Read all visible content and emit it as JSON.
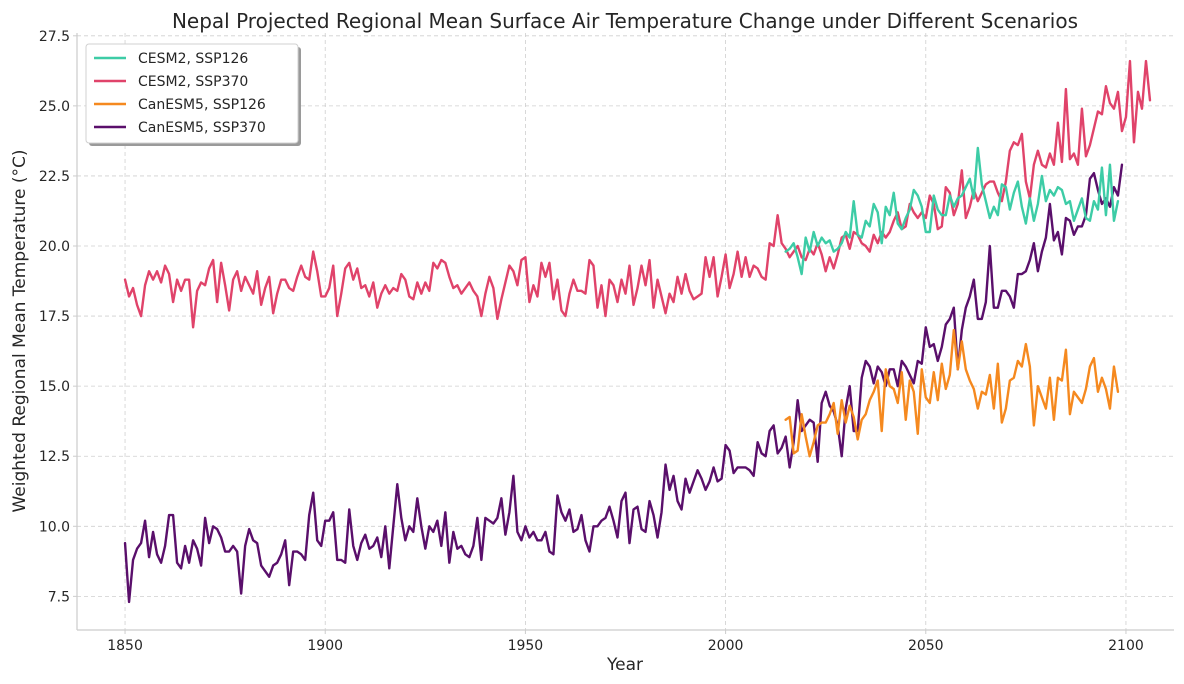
{
  "chart_data": {
    "type": "line",
    "title": "Nepal Projected Regional Mean Surface Air Temperature Change under Different Scenarios",
    "xlabel": "Year",
    "ylabel": "Weighted Regional Mean Temperature (°C)",
    "xlim": [
      1838,
      2112
    ],
    "ylim": [
      6.3,
      27.6
    ],
    "xticks": [
      1850,
      1900,
      1950,
      2000,
      2050,
      2100
    ],
    "yticks": [
      7.5,
      10.0,
      12.5,
      15.0,
      17.5,
      20.0,
      22.5,
      25.0,
      27.5
    ],
    "grid": true,
    "legend_position": "upper-left",
    "colors": {
      "CESM2, SSP126": "#3dcca6",
      "CESM2, SSP370": "#e0436a",
      "CanESM5, SSP126": "#f5891f",
      "CanESM5, SSP370": "#5a0f6b"
    },
    "series": [
      {
        "name": "CESM2, SSP370",
        "x_start": 1850,
        "values": [
          18.8,
          18.2,
          18.5,
          17.9,
          17.5,
          18.6,
          19.1,
          18.8,
          19.1,
          18.7,
          19.3,
          19.0,
          18.0,
          18.8,
          18.4,
          18.8,
          18.8,
          17.1,
          18.4,
          18.7,
          18.6,
          19.2,
          19.5,
          18.0,
          19.4,
          18.6,
          17.7,
          18.8,
          19.1,
          18.4,
          18.9,
          18.6,
          18.3,
          19.1,
          17.9,
          18.5,
          18.9,
          17.6,
          18.3,
          18.8,
          18.8,
          18.5,
          18.4,
          18.9,
          19.3,
          18.9,
          18.8,
          19.8,
          19.1,
          18.2,
          18.2,
          18.5,
          19.3,
          17.5,
          18.3,
          19.2,
          19.4,
          18.8,
          19.2,
          18.5,
          18.6,
          18.2,
          18.7,
          17.8,
          18.3,
          18.6,
          18.3,
          18.5,
          18.4,
          19.0,
          18.8,
          18.2,
          18.1,
          18.7,
          18.3,
          18.7,
          18.4,
          19.4,
          19.2,
          19.5,
          19.4,
          18.9,
          18.5,
          18.6,
          18.3,
          18.5,
          18.7,
          18.4,
          18.2,
          17.5,
          18.3,
          18.9,
          18.5,
          17.4,
          18.1,
          18.7,
          19.3,
          19.1,
          18.6,
          19.5,
          19.6,
          18.0,
          18.6,
          18.2,
          19.4,
          18.9,
          19.4,
          18.1,
          18.8,
          17.7,
          17.5,
          18.3,
          18.8,
          18.4,
          18.4,
          18.3,
          19.5,
          19.3,
          17.8,
          18.6,
          17.5,
          18.8,
          18.6,
          18.0,
          18.8,
          18.3,
          19.3,
          17.9,
          18.5,
          19.3,
          18.6,
          19.5,
          17.8,
          18.8,
          18.2,
          17.6,
          18.3,
          18.0,
          18.9,
          18.3,
          19.0,
          18.4,
          18.1,
          18.2,
          18.3,
          19.6,
          18.9,
          19.6,
          18.2,
          18.9,
          19.7,
          18.5,
          19.0,
          19.8,
          18.9,
          19.6,
          18.9,
          19.3,
          19.2,
          18.9,
          18.8,
          20.1,
          20.0,
          21.1,
          20.1,
          19.9,
          19.6,
          19.8,
          20.0,
          19.6,
          19.5,
          19.9,
          19.7,
          20.1,
          19.7,
          19.1,
          19.6,
          19.2,
          19.7,
          20.3,
          20.4,
          19.9,
          20.5,
          20.4,
          20.1,
          20.0,
          19.8,
          20.4,
          20.1,
          20.5,
          20.3,
          20.5,
          20.9,
          21.2,
          20.6,
          20.7,
          21.5,
          21.2,
          21.0,
          21.2,
          21.0,
          21.8,
          21.5,
          20.6,
          20.7,
          22.1,
          21.9,
          21.1,
          21.5,
          22.7,
          21.0,
          21.4,
          22.0,
          21.6,
          21.9,
          22.2,
          22.3,
          22.3,
          21.9,
          21.6,
          22.3,
          23.4,
          23.7,
          23.6,
          24.0,
          22.3,
          21.7,
          22.9,
          23.4,
          22.9,
          22.8,
          23.3,
          22.9,
          24.4,
          23.0,
          25.6,
          23.1,
          23.3,
          22.9,
          24.9,
          23.2,
          23.6,
          24.2,
          24.8,
          24.7,
          25.7,
          25.1,
          24.9,
          25.5,
          24.1,
          24.6,
          26.6,
          23.7,
          25.5,
          24.9,
          26.6,
          25.2
        ]
      },
      {
        "name": "CanESM5, SSP370",
        "x_start": 1850,
        "values": [
          9.4,
          7.3,
          8.8,
          9.2,
          9.4,
          10.2,
          8.9,
          9.8,
          9.0,
          8.7,
          9.3,
          10.4,
          10.4,
          8.7,
          8.5,
          9.3,
          8.7,
          9.5,
          9.2,
          8.6,
          10.3,
          9.4,
          10.0,
          9.9,
          9.6,
          9.1,
          9.1,
          9.3,
          9.1,
          7.6,
          9.3,
          9.9,
          9.5,
          9.4,
          8.6,
          8.4,
          8.2,
          8.6,
          8.7,
          9.0,
          9.5,
          7.9,
          9.1,
          9.1,
          9.0,
          8.8,
          10.4,
          11.2,
          9.5,
          9.3,
          10.2,
          10.2,
          10.5,
          8.8,
          8.8,
          8.7,
          10.6,
          9.3,
          8.8,
          9.4,
          9.7,
          9.2,
          9.3,
          9.6,
          8.9,
          10.0,
          8.5,
          10.0,
          11.5,
          10.3,
          9.5,
          10.0,
          9.8,
          11.0,
          10.0,
          9.2,
          10.0,
          9.8,
          10.2,
          9.3,
          10.5,
          8.7,
          9.8,
          9.2,
          9.3,
          9.0,
          8.9,
          9.3,
          10.3,
          8.8,
          10.3,
          10.2,
          10.1,
          10.3,
          11.0,
          9.7,
          10.5,
          11.8,
          9.8,
          9.5,
          10.0,
          9.6,
          9.8,
          9.5,
          9.5,
          9.8,
          9.1,
          9.0,
          11.1,
          10.5,
          10.2,
          10.6,
          9.8,
          9.9,
          10.4,
          9.5,
          9.1,
          10.0,
          10.0,
          10.2,
          10.3,
          10.7,
          10.2,
          9.6,
          10.9,
          11.2,
          9.4,
          10.6,
          10.7,
          9.9,
          9.8,
          10.9,
          10.4,
          9.6,
          10.5,
          12.2,
          11.3,
          11.8,
          10.9,
          10.6,
          11.7,
          11.2,
          11.6,
          12.0,
          11.7,
          11.3,
          11.6,
          12.1,
          11.6,
          11.7,
          12.9,
          12.7,
          11.9,
          12.1,
          12.1,
          12.1,
          12.0,
          11.8,
          13.0,
          12.6,
          12.5,
          13.4,
          13.6,
          12.6,
          12.8,
          13.2,
          12.1,
          13.0,
          14.5,
          13.4,
          13.6,
          13.8,
          13.7,
          12.3,
          14.4,
          14.8,
          14.3,
          14.1,
          13.6,
          12.5,
          14.2,
          15.0,
          13.4,
          13.4,
          15.3,
          15.9,
          15.7,
          15.1,
          15.7,
          15.5,
          15.0,
          15.6,
          15.6,
          15.0,
          15.9,
          15.7,
          15.4,
          15.1,
          15.9,
          15.8,
          17.1,
          16.4,
          16.5,
          15.9,
          16.4,
          17.2,
          17.4,
          17.8,
          15.6,
          17.0,
          17.8,
          18.2,
          18.8,
          17.4,
          17.4,
          18.0,
          20.0,
          17.8,
          17.8,
          18.4,
          18.4,
          18.2,
          17.8,
          19.0,
          19.0,
          19.1,
          19.5,
          20.1,
          19.1,
          19.8,
          20.3,
          21.5,
          20.2,
          20.5,
          19.7,
          21.0,
          20.9,
          20.4,
          20.7,
          20.7,
          21.1,
          22.4,
          22.6,
          22.0,
          21.5,
          21.7,
          21.4,
          22.1,
          21.8,
          22.9
        ]
      },
      {
        "name": "CESM2, SSP126",
        "x_start": 2015,
        "values": [
          19.8,
          19.9,
          20.1,
          19.6,
          19.0,
          20.3,
          19.8,
          20.5,
          20.0,
          20.3,
          20.1,
          20.2,
          19.8,
          19.9,
          20.1,
          20.5,
          20.3,
          21.6,
          20.4,
          20.3,
          20.9,
          20.7,
          21.5,
          21.2,
          20.1,
          21.4,
          21.1,
          21.9,
          20.8,
          20.6,
          21.0,
          21.3,
          22.0,
          21.8,
          21.4,
          20.5,
          20.5,
          21.8,
          21.3,
          21.1,
          21.1,
          21.8,
          21.4,
          21.7,
          21.8,
          22.1,
          22.4,
          21.7,
          23.5,
          22.2,
          21.6,
          21.0,
          21.4,
          21.1,
          22.2,
          22.1,
          21.3,
          21.9,
          22.3,
          21.4,
          20.8,
          21.7,
          20.9,
          21.5,
          22.5,
          21.6,
          22.0,
          21.8,
          22.1,
          22.0,
          21.5,
          21.6,
          20.9,
          21.3,
          21.7,
          21.0,
          20.9,
          21.6,
          21.3,
          22.8,
          21.1,
          22.9,
          20.9,
          21.6
        ]
      },
      {
        "name": "CanESM5, SSP126",
        "x_start": 2015,
        "values": [
          13.8,
          13.9,
          12.6,
          12.7,
          14.0,
          13.2,
          12.5,
          13.0,
          13.6,
          13.7,
          13.7,
          14.0,
          14.4,
          13.3,
          14.5,
          13.7,
          14.3,
          13.9,
          13.1,
          13.8,
          14.0,
          14.5,
          14.8,
          15.2,
          13.4,
          15.6,
          15.0,
          14.9,
          14.4,
          15.5,
          13.8,
          15.2,
          14.8,
          13.3,
          15.6,
          14.6,
          14.4,
          15.5,
          14.5,
          15.8,
          14.9,
          15.4,
          17.0,
          15.6,
          16.6,
          15.6,
          15.2,
          14.9,
          14.2,
          14.8,
          14.7,
          15.4,
          14.2,
          15.8,
          13.7,
          14.2,
          15.2,
          15.3,
          15.9,
          15.7,
          16.5,
          15.7,
          13.6,
          15.0,
          14.6,
          14.2,
          15.3,
          13.8,
          15.3,
          15.2,
          16.3,
          14.0,
          14.8,
          14.6,
          14.4,
          14.9,
          15.7,
          16.0,
          14.8,
          15.3,
          14.9,
          14.2,
          15.7,
          14.8
        ]
      }
    ],
    "legend_entries": [
      "CESM2, SSP126",
      "CESM2, SSP370",
      "CanESM5, SSP126",
      "CanESM5, SSP370"
    ]
  }
}
